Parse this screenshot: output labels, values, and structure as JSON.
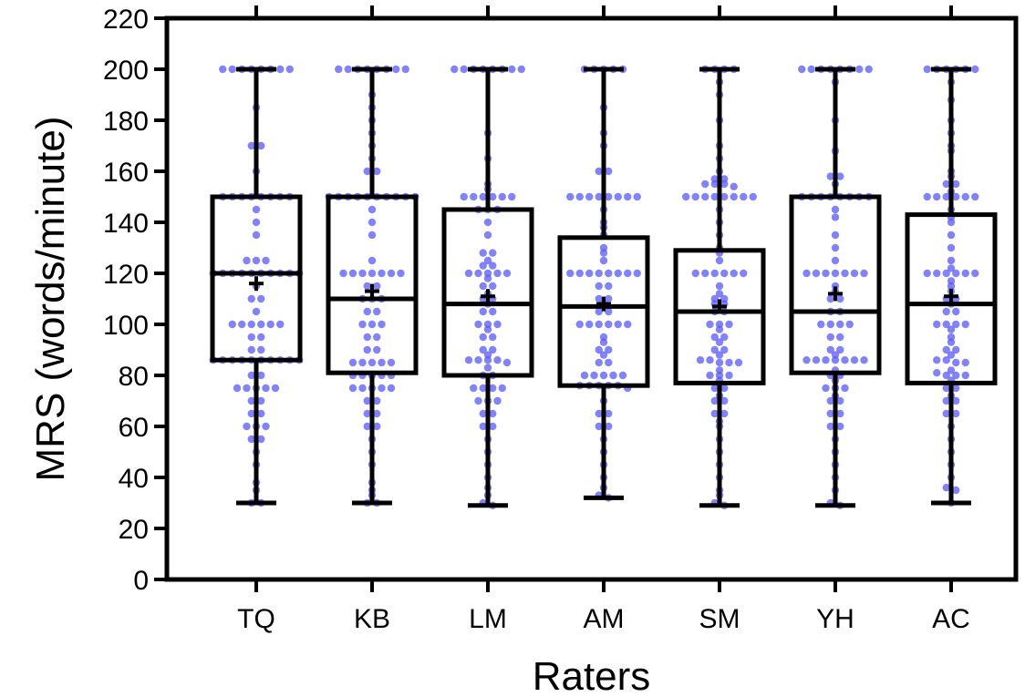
{
  "chart_data": {
    "type": "box",
    "title": "",
    "xlabel": "Raters",
    "ylabel": "MRS (words/minute)",
    "ylim": [
      0,
      220
    ],
    "yticks": [
      0,
      20,
      40,
      60,
      80,
      100,
      120,
      140,
      160,
      180,
      200,
      220
    ],
    "grid": false,
    "legend": "none",
    "colors": {
      "points": "#5a5af5",
      "box": "#000000"
    },
    "categories": [
      "TQ",
      "KB",
      "LM",
      "AM",
      "SM",
      "YH",
      "AC"
    ],
    "series": [
      {
        "category": "TQ",
        "min": 30,
        "q1": 86,
        "median": 120,
        "q3": 150,
        "max": 200,
        "mean": 116,
        "points": [
          200,
          200,
          200,
          200,
          200,
          200,
          200,
          200,
          185,
          170,
          170,
          160,
          150,
          150,
          150,
          150,
          150,
          150,
          150,
          150,
          145,
          140,
          135,
          125,
          125,
          125,
          120,
          120,
          120,
          120,
          120,
          120,
          120,
          120,
          120,
          120,
          115,
          110,
          110,
          105,
          100,
          100,
          100,
          100,
          100,
          100,
          95,
          95,
          90,
          90,
          86,
          86,
          86,
          86,
          86,
          86,
          86,
          86,
          86,
          86,
          80,
          80,
          75,
          75,
          75,
          75,
          75,
          70,
          70,
          65,
          65,
          60,
          60,
          60,
          55,
          55,
          50,
          45,
          38,
          35,
          30,
          30
        ]
      },
      {
        "category": "KB",
        "min": 30,
        "q1": 81,
        "median": 110,
        "q3": 150,
        "max": 200,
        "mean": 113,
        "points": [
          200,
          200,
          200,
          200,
          200,
          200,
          200,
          200,
          190,
          185,
          180,
          175,
          170,
          165,
          160,
          160,
          150,
          150,
          150,
          150,
          150,
          150,
          150,
          150,
          150,
          150,
          145,
          140,
          135,
          125,
          120,
          120,
          120,
          120,
          120,
          120,
          120,
          115,
          115,
          110,
          110,
          110,
          105,
          105,
          100,
          100,
          100,
          95,
          95,
          90,
          90,
          85,
          85,
          85,
          85,
          85,
          80,
          80,
          80,
          80,
          80,
          75,
          75,
          75,
          75,
          75,
          70,
          70,
          65,
          65,
          60,
          60,
          55,
          50,
          45,
          38,
          35,
          33,
          30,
          30
        ]
      },
      {
        "category": "LM",
        "min": 29,
        "q1": 80,
        "median": 108,
        "q3": 145,
        "max": 200,
        "mean": 111,
        "points": [
          200,
          200,
          200,
          200,
          200,
          200,
          200,
          200,
          175,
          165,
          155,
          153,
          150,
          150,
          150,
          150,
          150,
          150,
          145,
          145,
          145,
          140,
          135,
          128,
          128,
          125,
          123,
          123,
          120,
          120,
          120,
          120,
          120,
          118,
          115,
          115,
          112,
          110,
          110,
          108,
          105,
          105,
          100,
          100,
          100,
          98,
          95,
          95,
          90,
          90,
          88,
          86,
          86,
          86,
          86,
          85,
          83,
          80,
          80,
          75,
          75,
          75,
          75,
          70,
          70,
          70,
          65,
          65,
          60,
          60,
          55,
          50,
          45,
          40,
          36,
          33,
          30,
          29
        ]
      },
      {
        "category": "AM",
        "min": 32,
        "q1": 76,
        "median": 107,
        "q3": 134,
        "max": 200,
        "mean": 108,
        "points": [
          200,
          200,
          200,
          200,
          200,
          185,
          175,
          170,
          160,
          160,
          150,
          150,
          150,
          150,
          150,
          150,
          150,
          150,
          145,
          140,
          138,
          135,
          130,
          128,
          125,
          120,
          120,
          120,
          120,
          120,
          120,
          120,
          120,
          115,
          115,
          110,
          110,
          108,
          105,
          105,
          100,
          100,
          100,
          100,
          100,
          100,
          95,
          93,
          90,
          90,
          88,
          85,
          85,
          80,
          80,
          80,
          80,
          80,
          76,
          76,
          76,
          76,
          76,
          75,
          70,
          65,
          65,
          60,
          60,
          55,
          50,
          45,
          40,
          36,
          33,
          32
        ]
      },
      {
        "category": "SM",
        "min": 29,
        "q1": 77,
        "median": 105,
        "q3": 129,
        "max": 200,
        "mean": 107,
        "points": [
          200,
          200,
          200,
          200,
          195,
          190,
          180,
          170,
          165,
          160,
          157,
          157,
          155,
          155,
          155,
          154,
          150,
          150,
          150,
          150,
          150,
          150,
          150,
          150,
          145,
          140,
          135,
          130,
          128,
          125,
          120,
          120,
          120,
          120,
          120,
          120,
          115,
          112,
          110,
          110,
          108,
          108,
          105,
          105,
          100,
          100,
          100,
          98,
          95,
          95,
          93,
          90,
          90,
          88,
          86,
          86,
          85,
          85,
          85,
          82,
          80,
          80,
          80,
          78,
          75,
          75,
          72,
          70,
          70,
          65,
          65,
          62,
          60,
          55,
          50,
          45,
          40,
          35,
          33,
          30,
          29
        ]
      },
      {
        "category": "YH",
        "min": 29,
        "q1": 81,
        "median": 105,
        "q3": 150,
        "max": 200,
        "mean": 112,
        "points": [
          200,
          200,
          200,
          200,
          200,
          200,
          200,
          200,
          195,
          180,
          168,
          158,
          158,
          155,
          150,
          150,
          150,
          150,
          150,
          150,
          150,
          150,
          145,
          142,
          135,
          130,
          125,
          120,
          120,
          120,
          120,
          120,
          120,
          120,
          115,
          113,
          110,
          110,
          105,
          105,
          100,
          100,
          100,
          100,
          95,
          95,
          90,
          90,
          88,
          86,
          86,
          86,
          86,
          86,
          86,
          86,
          82,
          80,
          80,
          78,
          75,
          75,
          75,
          72,
          70,
          70,
          65,
          65,
          60,
          60,
          55,
          50,
          45,
          40,
          35,
          30,
          29
        ]
      },
      {
        "category": "AC",
        "min": 30,
        "q1": 77,
        "median": 108,
        "q3": 143,
        "max": 200,
        "mean": 111,
        "points": [
          200,
          200,
          200,
          200,
          200,
          200,
          195,
          188,
          180,
          175,
          170,
          168,
          160,
          158,
          155,
          155,
          152,
          150,
          150,
          150,
          150,
          150,
          150,
          145,
          142,
          140,
          135,
          130,
          125,
          122,
          120,
          120,
          120,
          120,
          120,
          120,
          117,
          115,
          113,
          110,
          110,
          108,
          105,
          105,
          100,
          100,
          100,
          100,
          98,
          95,
          93,
          90,
          90,
          88,
          86,
          86,
          85,
          85,
          82,
          81,
          80,
          80,
          80,
          78,
          75,
          75,
          72,
          70,
          70,
          65,
          65,
          60,
          55,
          50,
          45,
          40,
          36,
          35,
          30
        ]
      }
    ]
  }
}
